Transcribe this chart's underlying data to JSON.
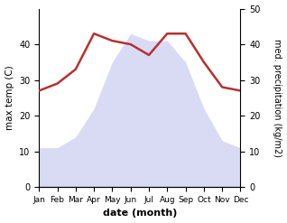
{
  "months": [
    "Jan",
    "Feb",
    "Mar",
    "Apr",
    "May",
    "Jun",
    "Jul",
    "Aug",
    "Sep",
    "Oct",
    "Nov",
    "Dec"
  ],
  "max_temp": [
    11,
    11,
    14,
    22,
    35,
    43,
    41,
    41,
    35,
    22,
    13,
    11
  ],
  "precipitation": [
    27,
    29,
    33,
    43,
    41,
    40,
    37,
    43,
    43,
    35,
    28,
    27
  ],
  "temp_fill_color": "#c8ccee",
  "precip_color": "#b83030",
  "xlabel": "date (month)",
  "ylabel_left": "max temp (C)",
  "ylabel_right": "med. precipitation (kg/m2)",
  "ylim_left": [
    0,
    50
  ],
  "ylim_right": [
    0,
    50
  ],
  "yticks_left": [
    0,
    10,
    20,
    30,
    40
  ],
  "yticks_right": [
    0,
    10,
    20,
    30,
    40,
    50
  ],
  "background_color": "#ffffff"
}
